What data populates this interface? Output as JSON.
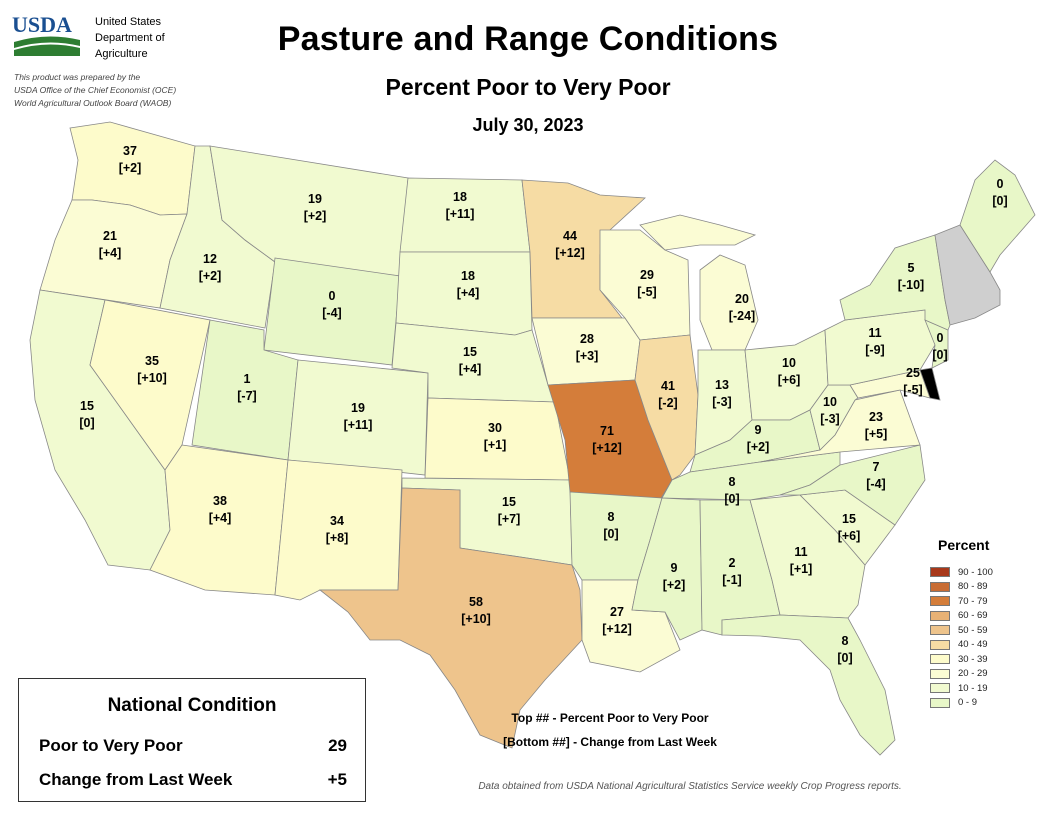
{
  "header": {
    "logo_text": "USDA",
    "agency_lines": [
      "United States",
      "Department of",
      "Agriculture"
    ],
    "prepared_lines": [
      "This product was prepared by the",
      "USDA Office of the Chief Economist (OCE)",
      "World Agricultural Outlook Board (WAOB)"
    ],
    "title": "Pasture and Range Conditions",
    "subtitle": "Percent Poor to Very Poor",
    "date": "July 30, 2023"
  },
  "colors": {
    "c0_9": "#e8f7c8",
    "c10_19": "#f1fad0",
    "c20_29": "#fbfcd4",
    "c30_39": "#fdfbcb",
    "c40_49": "#f6dca4",
    "c50_59": "#eec48c",
    "c60_69": "#e8b275",
    "c70_79": "#d47d3a",
    "c80_89": "#c86c34",
    "c90_100": "#a8381a",
    "no_data": "#cfcfcf"
  },
  "states": [
    {
      "id": "WA",
      "value": "37",
      "change": "[+2]"
    },
    {
      "id": "OR",
      "value": "21",
      "change": "[+4]"
    },
    {
      "id": "CA",
      "value": "15",
      "change": "[0]"
    },
    {
      "id": "ID",
      "value": "12",
      "change": "[+2]"
    },
    {
      "id": "NV",
      "value": "35",
      "change": "[+10]"
    },
    {
      "id": "MT",
      "value": "19",
      "change": "[+2]"
    },
    {
      "id": "WY",
      "value": "0",
      "change": "[-4]"
    },
    {
      "id": "UT",
      "value": "1",
      "change": "[-7]"
    },
    {
      "id": "AZ",
      "value": "38",
      "change": "[+4]"
    },
    {
      "id": "CO",
      "value": "19",
      "change": "[+11]"
    },
    {
      "id": "NM",
      "value": "34",
      "change": "[+8]"
    },
    {
      "id": "ND",
      "value": "18",
      "change": "[+11]"
    },
    {
      "id": "SD",
      "value": "18",
      "change": "[+4]"
    },
    {
      "id": "NE",
      "value": "15",
      "change": "[+4]"
    },
    {
      "id": "KS",
      "value": "30",
      "change": "[+1]"
    },
    {
      "id": "OK",
      "value": "15",
      "change": "[+7]"
    },
    {
      "id": "TX",
      "value": "58",
      "change": "[+10]"
    },
    {
      "id": "MN",
      "value": "44",
      "change": "[+12]"
    },
    {
      "id": "IA",
      "value": "28",
      "change": "[+3]"
    },
    {
      "id": "MO",
      "value": "71",
      "change": "[+12]"
    },
    {
      "id": "AR",
      "value": "8",
      "change": "[0]"
    },
    {
      "id": "LA",
      "value": "27",
      "change": "[+12]"
    },
    {
      "id": "WI",
      "value": "29",
      "change": "[-5]"
    },
    {
      "id": "IL",
      "value": "41",
      "change": "[-2]"
    },
    {
      "id": "MI",
      "value": "20",
      "change": "[-24]"
    },
    {
      "id": "IN",
      "value": "13",
      "change": "[-3]"
    },
    {
      "id": "OH",
      "value": "10",
      "change": "[+6]"
    },
    {
      "id": "KY",
      "value": "9",
      "change": "[+2]"
    },
    {
      "id": "TN",
      "value": "8",
      "change": "[0]"
    },
    {
      "id": "MS",
      "value": "9",
      "change": "[+2]"
    },
    {
      "id": "AL",
      "value": "2",
      "change": "[-1]"
    },
    {
      "id": "GA",
      "value": "11",
      "change": "[+1]"
    },
    {
      "id": "FL",
      "value": "8",
      "change": "[0]"
    },
    {
      "id": "SC",
      "value": "15",
      "change": "[+6]"
    },
    {
      "id": "NC",
      "value": "7",
      "change": "[-4]"
    },
    {
      "id": "VA",
      "value": "23",
      "change": "[+5]"
    },
    {
      "id": "WV",
      "value": "10",
      "change": "[-3]"
    },
    {
      "id": "MD",
      "value": "25",
      "change": "[-5]"
    },
    {
      "id": "PA",
      "value": "11",
      "change": "[-9]"
    },
    {
      "id": "NJ",
      "value": "0",
      "change": "[0]"
    },
    {
      "id": "NY",
      "value": "5",
      "change": "[-10]"
    },
    {
      "id": "ME",
      "value": "0",
      "change": "[0]"
    }
  ],
  "legend": {
    "title": "Percent",
    "items": [
      "90 - 100",
      "80 - 89",
      "70 - 79",
      "60 - 69",
      "50 - 59",
      "40 - 49",
      "30 - 39",
      "20 - 29",
      "10 - 19",
      "0 - 9"
    ]
  },
  "national": {
    "title": "National Condition",
    "rows": [
      {
        "label": "Poor to Very Poor",
        "value": "29"
      },
      {
        "label": "Change from Last Week",
        "value": "+5"
      }
    ]
  },
  "key": {
    "line1": "Top ## - Percent Poor to Very Poor",
    "line2": "[Bottom ##] - Change from Last Week"
  },
  "source": "Data obtained from USDA National Agricultural Statistics Service weekly Crop Progress reports."
}
